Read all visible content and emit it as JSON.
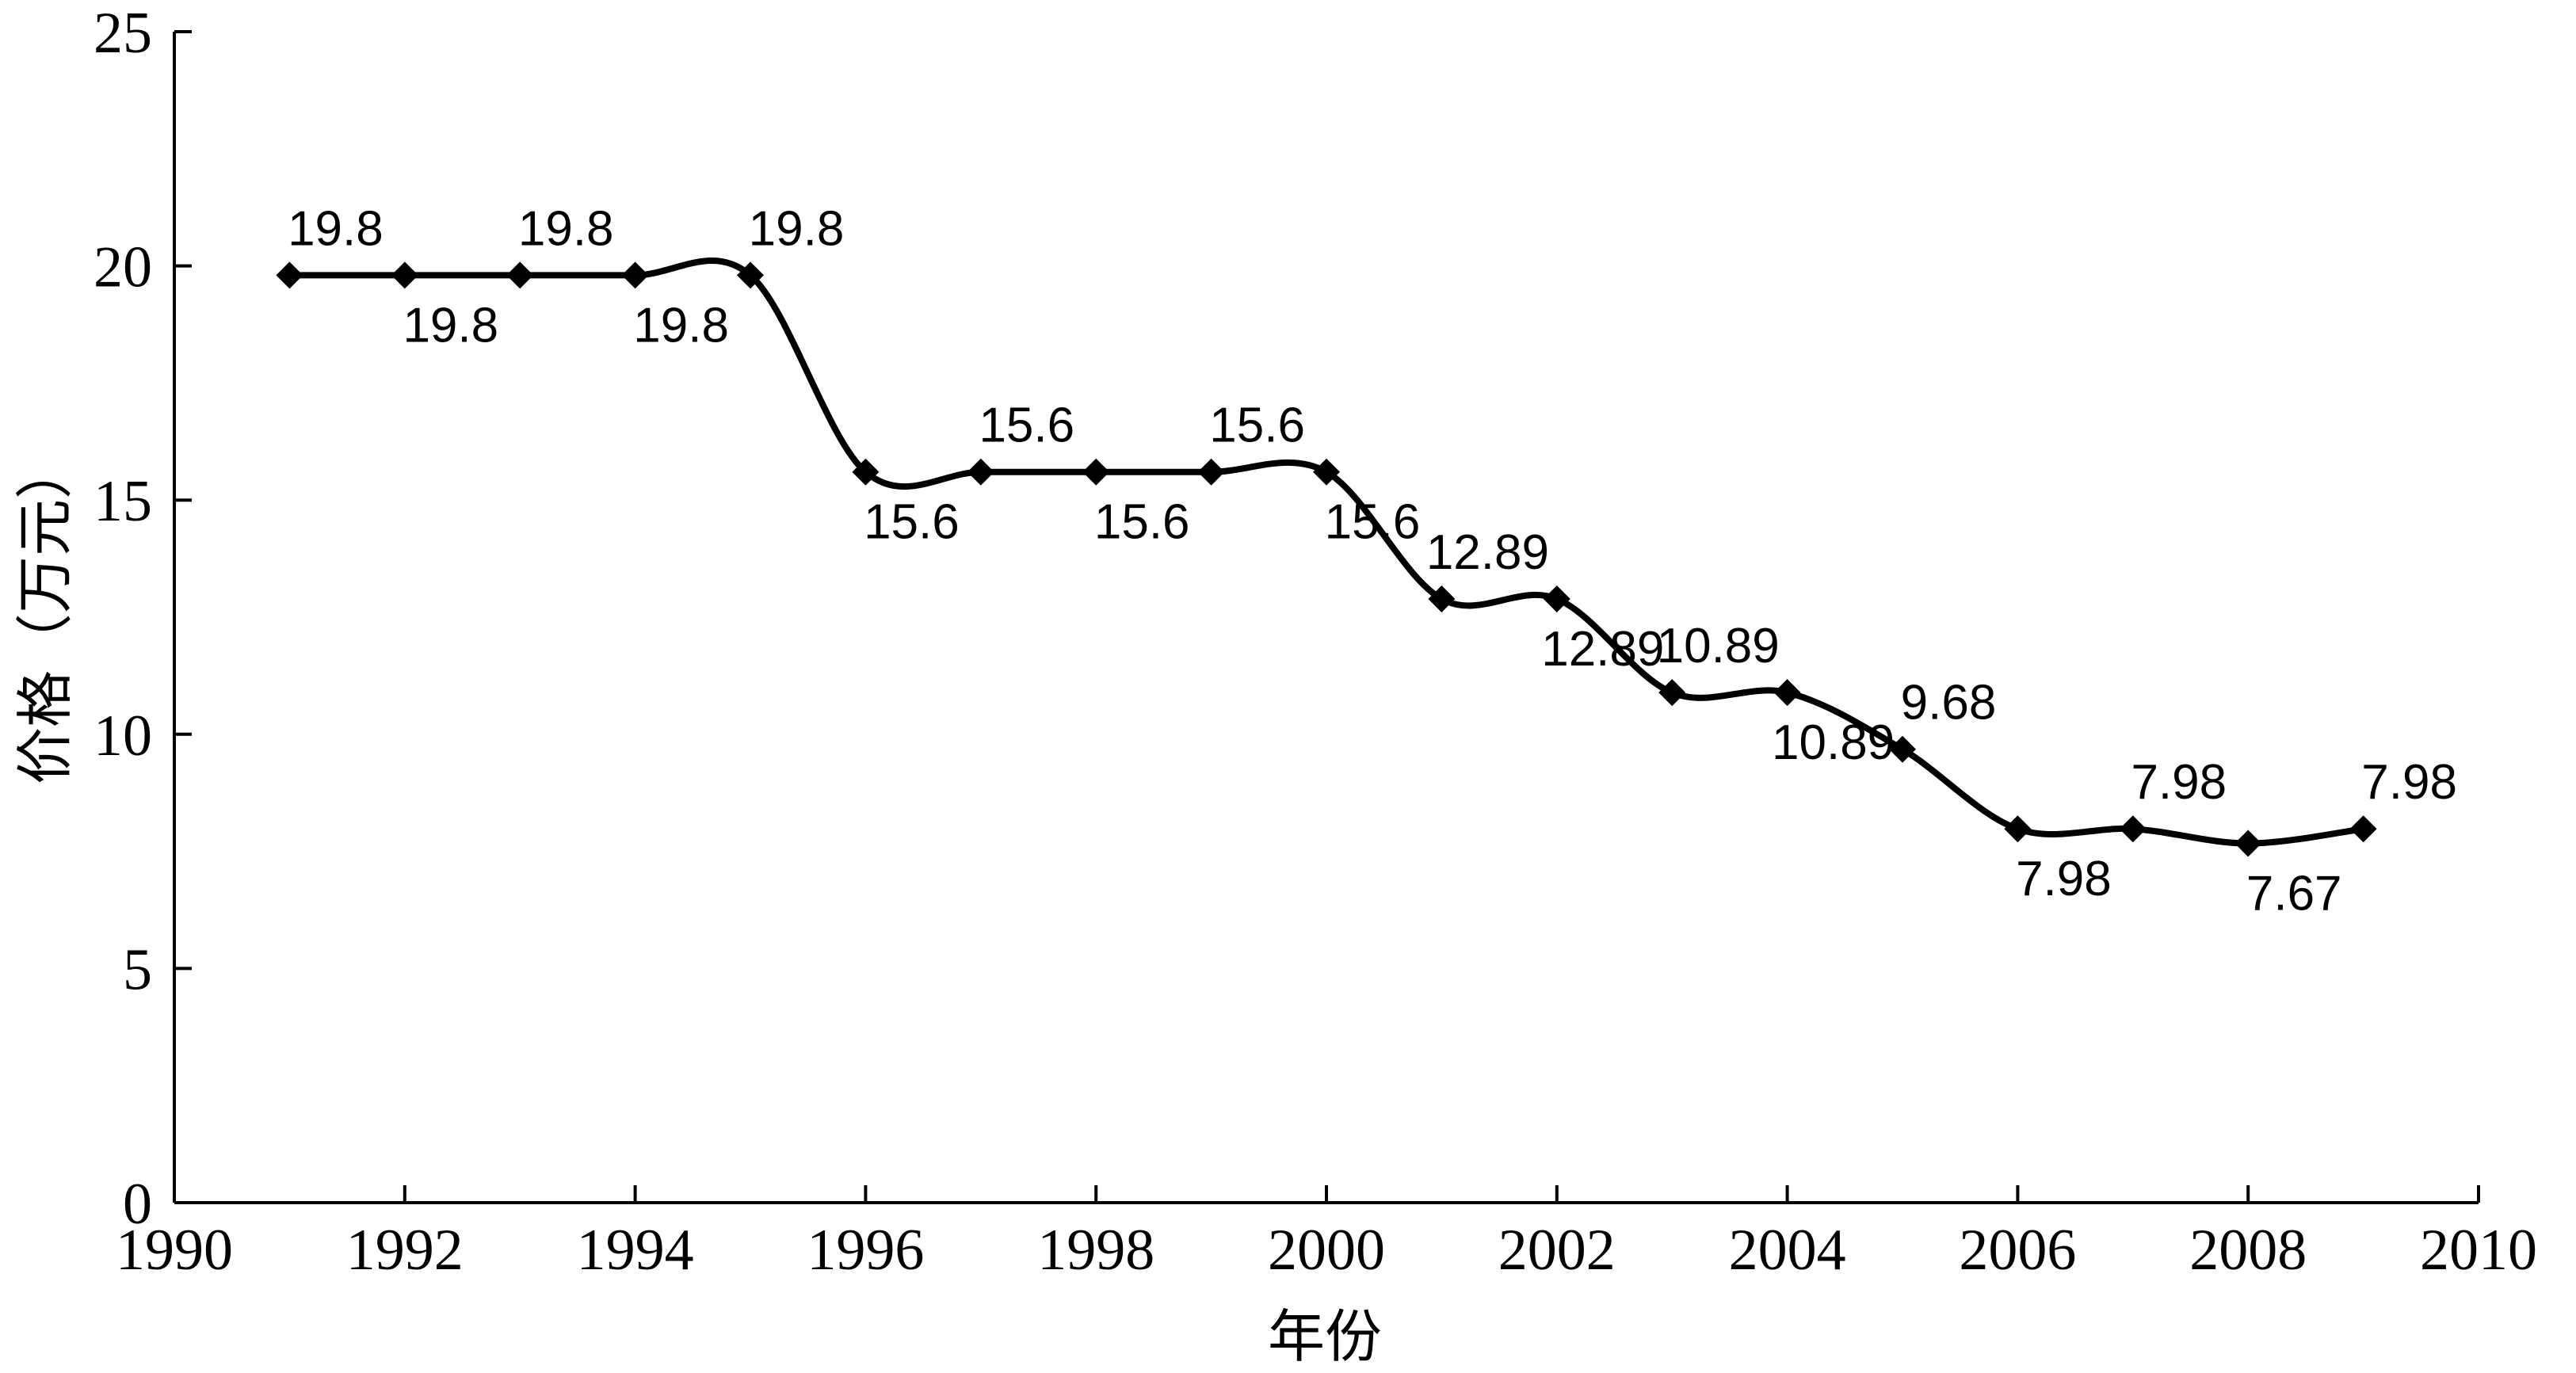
{
  "chart_data": {
    "type": "line",
    "title": "",
    "xlabel": "年份",
    "ylabel": "价格（万元）",
    "xlim": [
      1990,
      2010
    ],
    "ylim": [
      0,
      25
    ],
    "x_ticks": [
      1990,
      1992,
      1994,
      1996,
      1998,
      2000,
      2002,
      2004,
      2006,
      2008,
      2010
    ],
    "y_ticks": [
      0,
      5,
      10,
      15,
      20,
      25
    ],
    "grid": false,
    "legend": "none",
    "line_style": "smooth",
    "marker": "diamond",
    "color": "#000000",
    "series": [
      {
        "x": [
          1991,
          1992,
          1993,
          1994,
          1995,
          1996,
          1997,
          1998,
          1999,
          2000,
          2001,
          2002,
          2003,
          2004,
          2005,
          2006,
          2007,
          2008,
          2009
        ],
        "values": [
          19.8,
          19.8,
          19.8,
          19.8,
          19.8,
          15.6,
          15.6,
          15.6,
          15.6,
          15.6,
          12.89,
          12.89,
          10.89,
          10.89,
          9.68,
          7.98,
          7.98,
          7.67,
          7.98
        ],
        "labels": [
          "19.8",
          "19.8",
          "19.8",
          "19.8",
          "19.8",
          "15.6",
          "15.6",
          "15.6",
          "15.6",
          "15.6",
          "12.89",
          "12.89",
          "10.89",
          "10.89",
          "9.68",
          "7.98",
          "7.98",
          "7.67",
          "7.98"
        ],
        "label_positions": [
          "above",
          "below",
          "above",
          "below",
          "above",
          "below",
          "above",
          "below",
          "above",
          "below",
          "above",
          "below",
          "above",
          "below",
          "above",
          "below",
          "above",
          "below",
          "above"
        ]
      }
    ]
  }
}
